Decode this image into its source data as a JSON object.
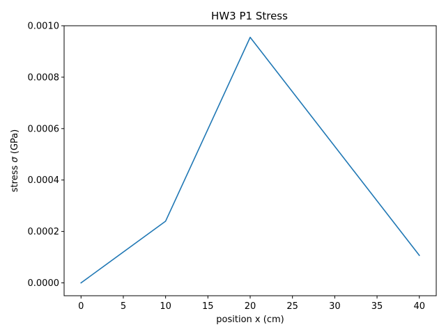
{
  "chart_data": {
    "type": "line",
    "title": "HW3 P1 Stress",
    "xlabel": "position x (cm)",
    "ylabel_prefix": "stress ",
    "ylabel_symbol": "σ",
    "ylabel_suffix": " (GPa)",
    "xlim": [
      -2,
      42
    ],
    "ylim": [
      -5e-05,
      0.001
    ],
    "xticks": [
      0,
      5,
      10,
      15,
      20,
      25,
      30,
      35,
      40
    ],
    "xtick_labels": [
      "0",
      "5",
      "10",
      "15",
      "20",
      "25",
      "30",
      "35",
      "40"
    ],
    "yticks": [
      0,
      0.0002,
      0.0004,
      0.0006,
      0.0008,
      0.001
    ],
    "ytick_labels": [
      "0.0000",
      "0.0002",
      "0.0004",
      "0.0006",
      "0.0008",
      "0.0010"
    ],
    "grid": false,
    "series": [
      {
        "color": "#1f77b4",
        "x": [
          0,
          10,
          20,
          40
        ],
        "y": [
          0,
          0.00024,
          0.000955,
          0.000107
        ]
      }
    ]
  }
}
